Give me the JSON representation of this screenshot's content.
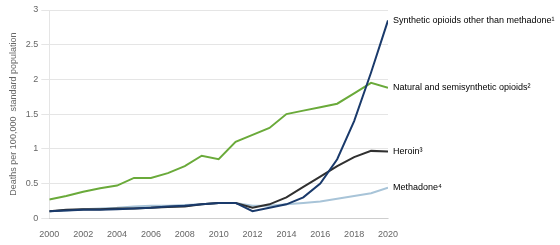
{
  "chart_data": {
    "type": "line",
    "x": [
      2000,
      2001,
      2002,
      2003,
      2004,
      2005,
      2006,
      2007,
      2008,
      2009,
      2010,
      2011,
      2012,
      2013,
      2014,
      2015,
      2016,
      2017,
      2018,
      2019,
      2020
    ],
    "series": [
      {
        "color": "#1a3a6b",
        "values": [
          0.1,
          0.11,
          0.12,
          0.12,
          0.13,
          0.14,
          0.15,
          0.17,
          0.18,
          0.2,
          0.22,
          0.22,
          0.1,
          0.15,
          0.2,
          0.3,
          0.5,
          0.85,
          1.4,
          2.1,
          2.85
        ]
      },
      {
        "color": "#6aaa3a",
        "values": [
          0.27,
          0.32,
          0.38,
          0.43,
          0.47,
          0.58,
          0.58,
          0.65,
          0.75,
          0.9,
          0.85,
          1.1,
          1.2,
          1.3,
          1.5,
          1.55,
          1.6,
          1.65,
          1.8,
          1.95,
          1.88
        ]
      },
      {
        "color": "#303030",
        "values": [
          0.1,
          0.12,
          0.13,
          0.13,
          0.14,
          0.14,
          0.15,
          0.16,
          0.17,
          0.2,
          0.22,
          0.22,
          0.15,
          0.2,
          0.3,
          0.45,
          0.6,
          0.75,
          0.88,
          0.97,
          0.96
        ]
      },
      {
        "color": "#a8c4d8",
        "values": [
          0.1,
          0.11,
          0.13,
          0.14,
          0.15,
          0.17,
          0.18,
          0.18,
          0.19,
          0.2,
          0.22,
          0.22,
          0.18,
          0.18,
          0.2,
          0.22,
          0.24,
          0.28,
          0.32,
          0.36,
          0.44
        ]
      }
    ],
    "annotations": [
      "Synthetic opioids other than methadone¹",
      "Natural and semisynthetic opioids²",
      "Heroin³",
      "Methadone⁴"
    ],
    "ylabel": "Deaths per 100,000  standard population",
    "xlim": [
      2000,
      2020
    ],
    "xticks": [
      2000,
      2002,
      2004,
      2006,
      2008,
      2010,
      2012,
      2014,
      2016,
      2018,
      2020
    ],
    "ylim": [
      0,
      3
    ],
    "yticks": [
      0,
      0.5,
      1,
      1.5,
      2,
      2.5,
      3
    ],
    "grid": true
  }
}
